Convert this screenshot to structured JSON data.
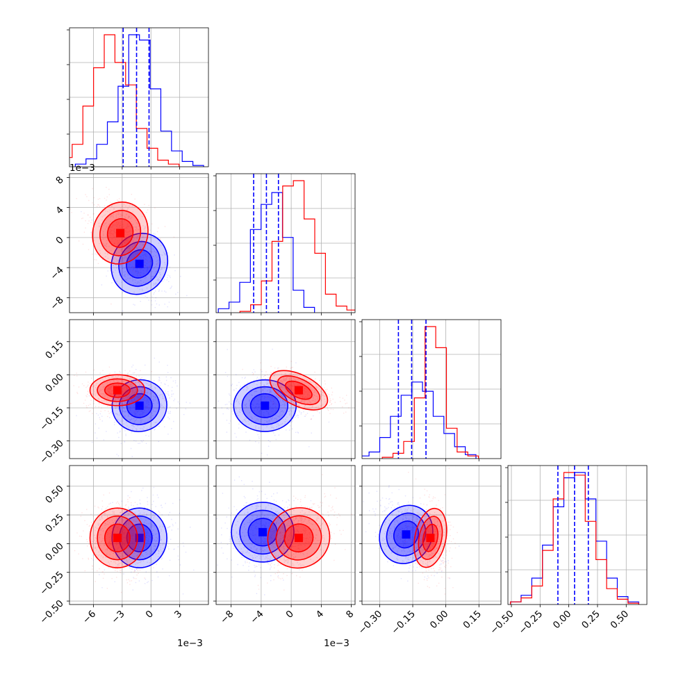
{
  "colors": {
    "series_blue": "#0000ff",
    "series_red": "#ff0000",
    "grid": "#b0b0b0",
    "frame": "#000000",
    "background": "#ffffff"
  },
  "chart_data": {
    "type": "corner",
    "n_params": 4,
    "grid": true,
    "series": [
      {
        "color": "#0000ff",
        "quantiles": [
          [
            -0.0029,
            -0.0015,
            -0.0002
          ],
          [
            -0.005,
            -0.0033,
            -0.0017
          ],
          [
            -0.215,
            -0.155,
            -0.09
          ],
          [
            -0.095,
            0.05,
            0.17
          ]
        ],
        "peaks": [
          [
            -0.0012,
            -0.0035
          ],
          [
            -0.0012,
            -0.14
          ],
          [
            -0.0035,
            -0.14
          ],
          [
            -0.0012,
            0.05
          ],
          [
            -0.0038,
            0.1
          ],
          [
            -0.18,
            0.08
          ]
        ],
        "hist_heights": [
          [
            0.02,
            0.06,
            0.17,
            0.34,
            0.61,
            1.0,
            0.96,
            0.59,
            0.27,
            0.12,
            0.04,
            0.01
          ],
          [
            0.03,
            0.08,
            0.23,
            0.63,
            0.82,
            0.91,
            0.57,
            0.17,
            0.04
          ],
          [
            0.02,
            0.05,
            0.16,
            0.32,
            0.48,
            0.58,
            0.51,
            0.32,
            0.19,
            0.09,
            0.03
          ],
          [
            0.02,
            0.07,
            0.2,
            0.45,
            0.74,
            0.96,
            1.0,
            0.8,
            0.48,
            0.2,
            0.06,
            0.02
          ]
        ]
      },
      {
        "color": "#ff0000",
        "quantiles": [
          null,
          null,
          null,
          null
        ],
        "peaks": [
          [
            -0.0032,
            0.0006
          ],
          [
            -0.0035,
            -0.07
          ],
          [
            0.001,
            -0.07
          ],
          [
            -0.0035,
            0.05
          ],
          [
            0.001,
            0.05
          ],
          [
            -0.07,
            0.05
          ]
        ],
        "hist_heights": [
          [
            0.07,
            0.17,
            0.46,
            0.75,
            1.0,
            0.79,
            0.62,
            0.29,
            0.14,
            0.05,
            0.02
          ],
          [
            0.01,
            0.06,
            0.24,
            0.54,
            0.96,
            1.0,
            0.71,
            0.45,
            0.14,
            0.05,
            0.02
          ],
          [
            0.01,
            0.04,
            0.13,
            0.46,
            1.0,
            0.84,
            0.23,
            0.05,
            0.02
          ],
          [
            0.02,
            0.05,
            0.14,
            0.41,
            0.8,
            1.0,
            0.98,
            0.63,
            0.34,
            0.12,
            0.04,
            0.01
          ]
        ]
      }
    ],
    "axes": [
      {
        "range": [
          -0.0085,
          0.006
        ],
        "ticks": [
          -0.006,
          -0.003,
          0.0,
          0.003
        ],
        "tick_labels": [
          "−6",
          "−3",
          "0",
          "3"
        ],
        "offset_text": "1e−3"
      },
      {
        "range": [
          -0.01,
          0.0085
        ],
        "ticks": [
          -0.008,
          -0.004,
          0.0,
          0.004,
          0.008
        ],
        "tick_labels": [
          "−8",
          "−4",
          "0",
          "4",
          "8"
        ],
        "offset_text": "1e−3"
      },
      {
        "range": [
          -0.38,
          0.25
        ],
        "ticks": [
          -0.3,
          -0.15,
          0.0,
          0.15
        ],
        "tick_labels": [
          "−0.30",
          "−0.15",
          "0.00",
          "0.15"
        ],
        "offset_text": ""
      },
      {
        "range": [
          -0.53,
          0.68
        ],
        "ticks": [
          -0.5,
          -0.25,
          0.0,
          0.25,
          0.5
        ],
        "tick_labels": [
          "−0.50",
          "−0.25",
          "0.00",
          "0.25",
          "0.50"
        ],
        "offset_text": ""
      }
    ]
  }
}
